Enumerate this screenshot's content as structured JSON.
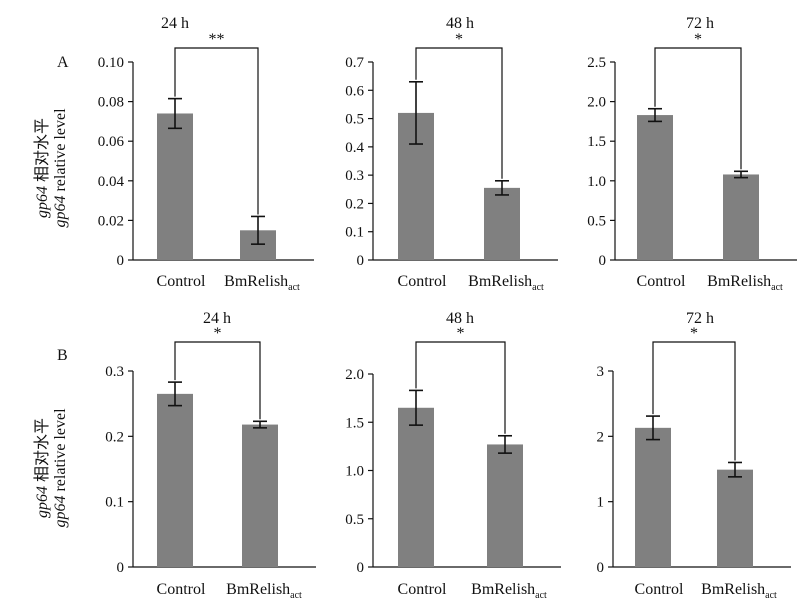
{
  "figure": {
    "ylabel_line1_italic": "gp64",
    "ylabel_line1_rest": "相对水平",
    "ylabel_line2_italic": "gp64",
    "ylabel_line2_rest": "relative level",
    "bar_color": "#808080",
    "axis_color": "#111111"
  },
  "chart_data": [
    {
      "type": "bar",
      "panel": "A",
      "title": "24 h",
      "categories": [
        "Control",
        "BmRelish"
      ],
      "category_subscripts": [
        "",
        "act"
      ],
      "values": [
        0.074,
        0.015
      ],
      "errors": [
        0.0075,
        0.007
      ],
      "ylim": [
        0,
        0.1
      ],
      "yticks": [
        "0",
        "0.02",
        "0.04",
        "0.06",
        "0.08",
        "0.10"
      ],
      "significance": "**",
      "grid": false
    },
    {
      "type": "bar",
      "panel": "",
      "title": "48 h",
      "categories": [
        "Control",
        "BmRelish"
      ],
      "category_subscripts": [
        "",
        "act"
      ],
      "values": [
        0.52,
        0.255
      ],
      "errors": [
        0.11,
        0.025
      ],
      "ylim": [
        0,
        0.7
      ],
      "yticks": [
        "0",
        "0.1",
        "0.2",
        "0.3",
        "0.4",
        "0.5",
        "0.6",
        "0.7"
      ],
      "significance": "*",
      "grid": false
    },
    {
      "type": "bar",
      "panel": "",
      "title": "72 h",
      "categories": [
        "Control",
        "BmRelish"
      ],
      "category_subscripts": [
        "",
        "act"
      ],
      "values": [
        1.83,
        1.08
      ],
      "errors": [
        0.08,
        0.04
      ],
      "ylim": [
        0,
        2.5
      ],
      "yticks": [
        "0",
        "0.5",
        "1.0",
        "1.5",
        "2.0",
        "2.5"
      ],
      "significance": "*",
      "grid": false
    },
    {
      "type": "bar",
      "panel": "B",
      "title": "24 h",
      "categories": [
        "Control",
        "BmRelish"
      ],
      "category_subscripts": [
        "",
        "act"
      ],
      "values": [
        0.265,
        0.218
      ],
      "errors": [
        0.018,
        0.005
      ],
      "ylim": [
        0,
        0.3
      ],
      "yticks": [
        "0",
        "0.1",
        "0.2",
        "0.3"
      ],
      "significance": "*",
      "grid": false
    },
    {
      "type": "bar",
      "panel": "",
      "title": "48 h",
      "categories": [
        "Control",
        "BmRelish"
      ],
      "category_subscripts": [
        "",
        "act"
      ],
      "values": [
        1.65,
        1.27
      ],
      "errors": [
        0.18,
        0.09
      ],
      "ylim": [
        0,
        2.0
      ],
      "yticks": [
        "0",
        "0.5",
        "1.0",
        "1.5",
        "2.0"
      ],
      "significance": "*",
      "grid": false
    },
    {
      "type": "bar",
      "panel": "",
      "title": "72 h",
      "categories": [
        "Control",
        "BmRelish"
      ],
      "category_subscripts": [
        "",
        "act"
      ],
      "values": [
        2.13,
        1.49
      ],
      "errors": [
        0.18,
        0.11
      ],
      "ylim": [
        0,
        3
      ],
      "yticks": [
        "0",
        "1",
        "2",
        "3"
      ],
      "significance": "*",
      "grid": false
    }
  ]
}
